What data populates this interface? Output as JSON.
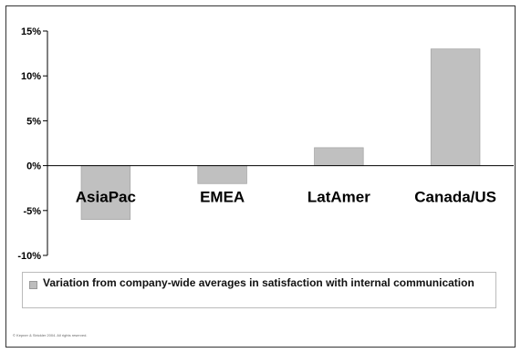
{
  "chart_data": {
    "type": "bar",
    "title": "",
    "xlabel": "",
    "ylabel": "",
    "categories": [
      "AsiaPac",
      "EMEA",
      "LatAmer",
      "Canada/US"
    ],
    "series": [
      {
        "name": "Variation from company-wide averages in satisfaction with internal communication",
        "values": [
          -6,
          -2,
          2,
          13
        ]
      }
    ],
    "ylim": [
      -10,
      15
    ],
    "yticks": [
      15,
      10,
      5,
      0,
      -5,
      -10
    ],
    "ytick_format": "percent",
    "legend_position": "bottom",
    "grid": false,
    "bar_color": "#c0c0c0"
  },
  "footer": {
    "copyright": "© Kepner & Strickler 2004. All rights reserved."
  }
}
